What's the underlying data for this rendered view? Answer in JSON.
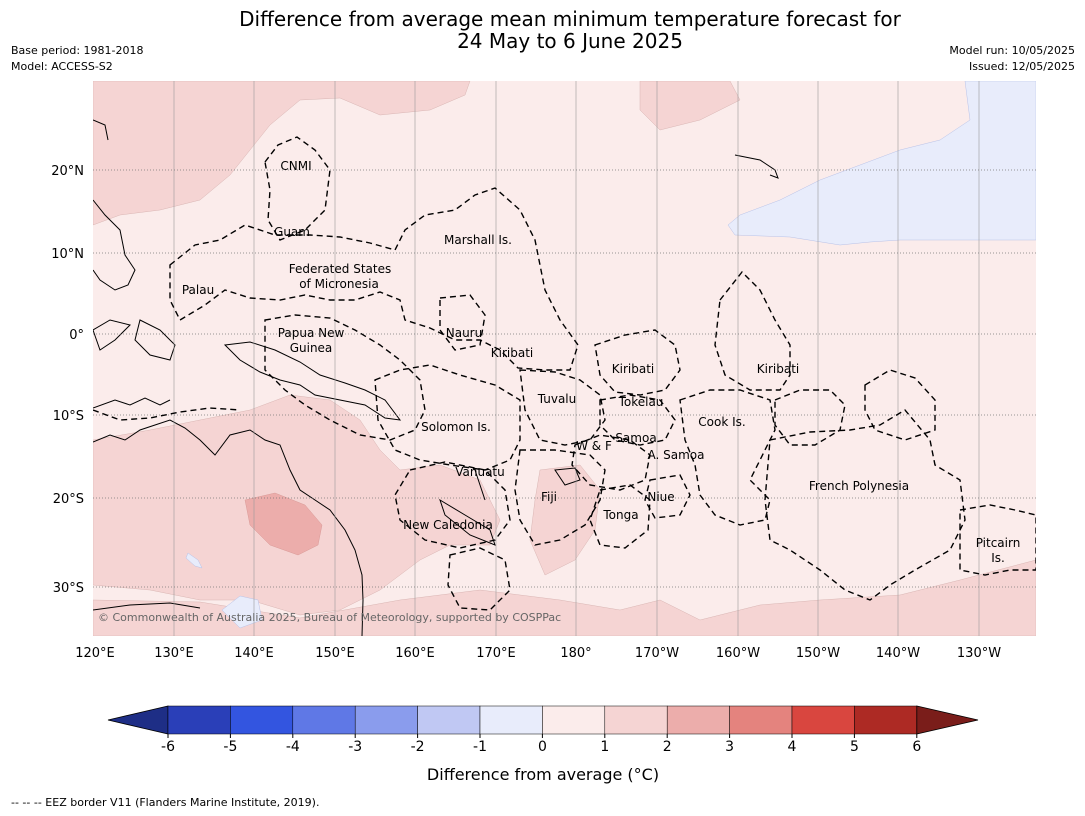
{
  "title_line1": "Difference from average mean minimum temperature forecast for",
  "title_line2": "24 May to 6 June 2025",
  "base_period": "Base period: 1981-2018",
  "model": "Model: ACCESS-S2",
  "model_run": "Model run: 10/05/2025",
  "issued": "Issued: 12/05/2025",
  "lat_labels": [
    "20°N",
    "10°N",
    "0°",
    "10°S",
    "20°S",
    "30°S"
  ],
  "lon_labels": [
    "120°E",
    "130°E",
    "140°E",
    "150°E",
    "160°E",
    "170°E",
    "180°",
    "170°W",
    "160°W",
    "150°W",
    "140°W",
    "130°W"
  ],
  "regions": [
    "CNMI",
    "Guam",
    "Marshall Is.",
    "Federated States",
    "of Micronesia",
    "Palau",
    "Papua New",
    "Guinea",
    "Nauru",
    "Kiribati",
    "Kiribati",
    "Kiribati",
    "Tuvalu",
    "Tokelau",
    "Cook Is.",
    "Solomon Is.",
    "W & F",
    "Samoa",
    "A. Samoa",
    "Vanuatu",
    "Fiji",
    "Niue",
    "Tonga",
    "French Polynesia",
    "New Caledonia",
    "Pitcairn",
    "Is."
  ],
  "copyright": "© Commonwealth of Australia 2025, Bureau of Meteorology, supported by COSPPac",
  "colorbar": {
    "ticks": [
      "-6",
      "-5",
      "-4",
      "-3",
      "-2",
      "-1",
      "0",
      "1",
      "2",
      "3",
      "4",
      "5",
      "6"
    ],
    "colors": [
      "#1e2e86",
      "#2a3fb8",
      "#3355e0",
      "#5f78e6",
      "#8a9ced",
      "#c0c8f3",
      "#e8ecfb",
      "#fbeceb",
      "#f5d4d3",
      "#ecadab",
      "#e4837e",
      "#d9463f",
      "#ad2a24",
      "#7a1d1a"
    ],
    "label": "Difference from average (°C)"
  },
  "footnote": "--  --  -- EEZ border V11 (Flanders Marine Institute, 2019)."
}
